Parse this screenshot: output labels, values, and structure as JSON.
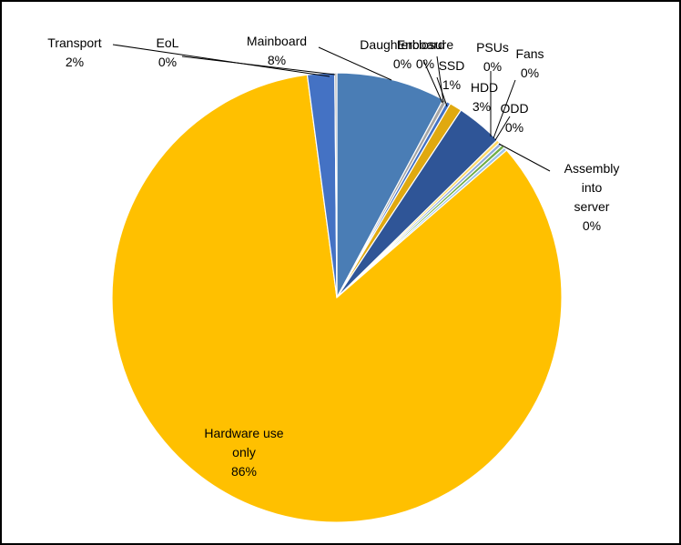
{
  "chart_data": {
    "type": "pie",
    "title": "",
    "start_angle_deg": 0,
    "direction": "clockwise",
    "slices": [
      {
        "name": "Mainboard",
        "value": 8,
        "display_value": "8%",
        "color": "#4a7db5"
      },
      {
        "name": "Daughterboard",
        "value": 0.3,
        "display_value": "0%",
        "color": "#a5a5a5"
      },
      {
        "name": "Enclosure",
        "value": 0.3,
        "display_value": "0%",
        "color": "#4472c4"
      },
      {
        "name": "SSD",
        "value": 0.9,
        "display_value": "1%",
        "color": "#e0a910"
      },
      {
        "name": "HDD",
        "value": 3.4,
        "display_value": "3%",
        "color": "#2f5597"
      },
      {
        "name": "PSUs",
        "value": 0.25,
        "display_value": "0%",
        "color": "#ffd966"
      },
      {
        "name": "Fans",
        "value": 0.25,
        "display_value": "0%",
        "color": "#8faadc"
      },
      {
        "name": "ODD",
        "value": 0.25,
        "display_value": "0%",
        "color": "#70ad47"
      },
      {
        "name": "Assembly into server",
        "value": 0.25,
        "display_value": "0%",
        "color": "#9dc3e6"
      },
      {
        "name": "Hardware use only",
        "value": 86.0,
        "display_value": "86%",
        "color": "#ffc000"
      },
      {
        "name": "Transport",
        "value": 2.0,
        "display_value": "2%",
        "color": "#4472c4"
      },
      {
        "name": "EoL",
        "value": 0.15,
        "display_value": "0%",
        "color": "#a9a9a9"
      }
    ]
  }
}
